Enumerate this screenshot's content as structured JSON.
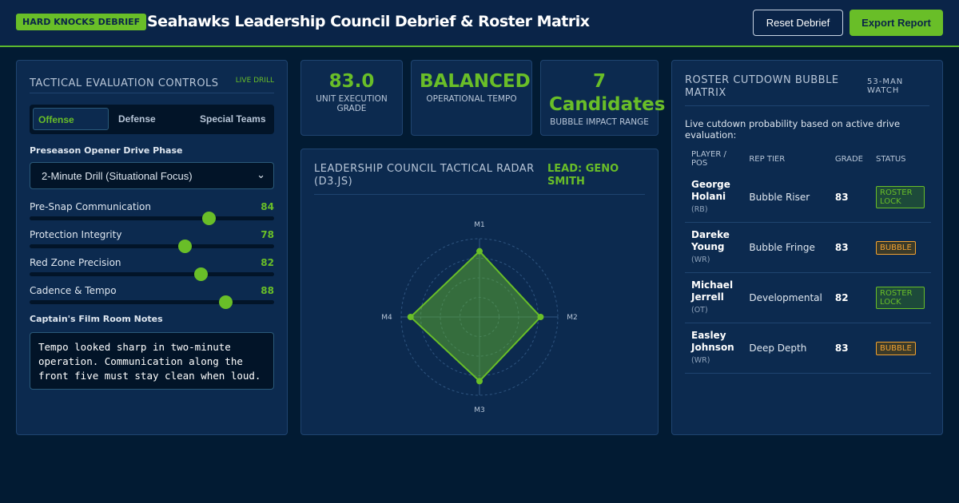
{
  "header": {
    "badge": "HARD KNOCKS DEBRIEF",
    "title": "Seahawks Leadership Council Debrief & Roster Matrix",
    "buttons": [
      "Reset Debrief",
      "Export Report"
    ]
  },
  "controls": {
    "title": "TACTICAL EVALUATION CONTROLS",
    "tag": "LIVE DRILL",
    "tabs": [
      "Offense",
      "Defense",
      "Special Teams"
    ],
    "phase_label": "Preseason Opener Drive Phase",
    "phase_value": "2-Minute Drill (Situational Focus)",
    "slider_min": 40,
    "slider_max": 100,
    "sliders": [
      {
        "label": "Pre-Snap Communication",
        "value": 84
      },
      {
        "label": "Protection Integrity",
        "value": 78
      },
      {
        "label": "Red Zone Precision",
        "value": 82
      },
      {
        "label": "Cadence & Tempo",
        "value": 88
      }
    ],
    "notes_label": "Captain's Film Room Notes",
    "notes": "Tempo looked sharp in two-minute operation. Communication along the front five must stay clean when loud."
  },
  "stats": [
    {
      "value": "83.0",
      "label": "UNIT EXECUTION GRADE"
    },
    {
      "value": "BALANCED",
      "label": "OPERATIONAL TEMPO"
    },
    {
      "value": "7 Candidates",
      "label": "BUBBLE IMPACT RANGE"
    }
  ],
  "radar": {
    "title": "LEADERSHIP COUNCIL TACTICAL RADAR (D3.JS)",
    "lead": "LEAD: GENO SMITH",
    "axes": [
      "M1",
      "M2",
      "M3",
      "M4"
    ],
    "rlim": [
      0,
      100
    ],
    "rings": [
      25,
      50,
      75,
      100
    ]
  },
  "roster": {
    "title": "ROSTER CUTDOWN BUBBLE MATRIX",
    "tag": "53-MAN WATCH",
    "subtitle": "Live cutdown probability based on active drive evaluation:",
    "columns": [
      "PLAYER / POS",
      "REP TIER",
      "GRADE",
      "STATUS"
    ],
    "rows": [
      {
        "name": "George Holani",
        "pos": "(RB)",
        "tier": "Bubble Riser",
        "grade": 83,
        "status": "ROSTER LOCK"
      },
      {
        "name": "Dareke Young",
        "pos": "(WR)",
        "tier": "Bubble Fringe",
        "grade": 83,
        "status": "BUBBLE"
      },
      {
        "name": "Michael Jerrell",
        "pos": "(OT)",
        "tier": "Developmental",
        "grade": 82,
        "status": "ROSTER LOCK"
      },
      {
        "name": "Easley Johnson",
        "pos": "(WR)",
        "tier": "Deep Depth",
        "grade": 83,
        "status": "BUBBLE"
      }
    ]
  }
}
